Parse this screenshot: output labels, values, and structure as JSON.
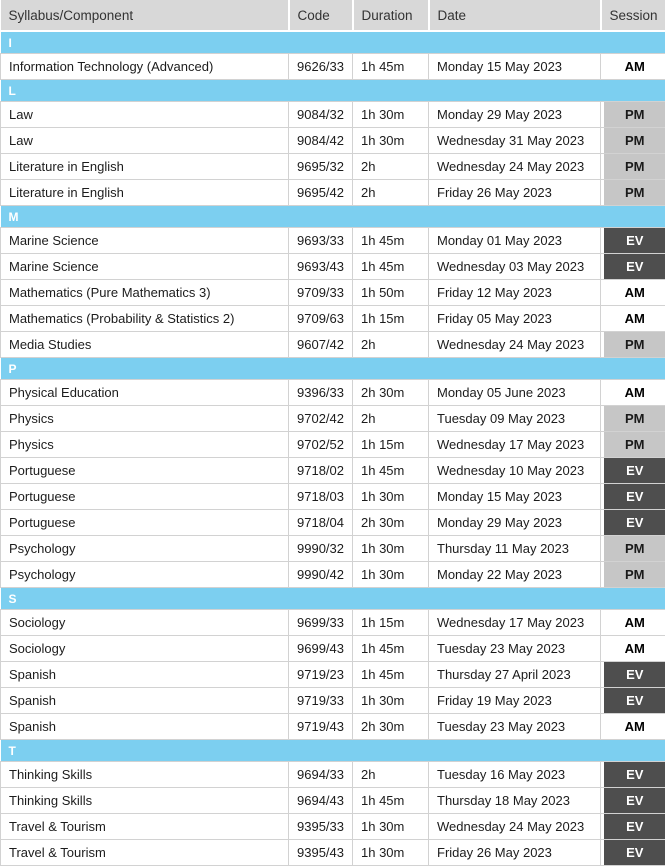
{
  "table": {
    "columns": [
      {
        "label": "Syllabus/Component"
      },
      {
        "label": "Code"
      },
      {
        "label": "Duration"
      },
      {
        "label": "Date"
      },
      {
        "label": "Session"
      }
    ],
    "sections": [
      {
        "letter": "I",
        "rows": [
          {
            "syllabus": "Information Technology (Advanced)",
            "code": "9626/33",
            "duration": "1h 45m",
            "date": "Monday 15 May 2023",
            "session": "AM"
          }
        ]
      },
      {
        "letter": "L",
        "rows": [
          {
            "syllabus": "Law",
            "code": "9084/32",
            "duration": "1h 30m",
            "date": "Monday 29 May 2023",
            "session": "PM"
          },
          {
            "syllabus": "Law",
            "code": "9084/42",
            "duration": "1h 30m",
            "date": "Wednesday 31 May 2023",
            "session": "PM"
          },
          {
            "syllabus": "Literature in English",
            "code": "9695/32",
            "duration": "2h",
            "date": "Wednesday 24 May 2023",
            "session": "PM"
          },
          {
            "syllabus": "Literature in English",
            "code": "9695/42",
            "duration": "2h",
            "date": "Friday 26 May 2023",
            "session": "PM"
          }
        ]
      },
      {
        "letter": "M",
        "rows": [
          {
            "syllabus": "Marine Science",
            "code": "9693/33",
            "duration": "1h 45m",
            "date": "Monday 01 May 2023",
            "session": "EV"
          },
          {
            "syllabus": "Marine Science",
            "code": "9693/43",
            "duration": "1h 45m",
            "date": "Wednesday 03 May 2023",
            "session": "EV"
          },
          {
            "syllabus": "Mathematics (Pure Mathematics 3)",
            "code": "9709/33",
            "duration": "1h 50m",
            "date": "Friday 12 May 2023",
            "session": "AM"
          },
          {
            "syllabus": "Mathematics (Probability & Statistics 2)",
            "code": "9709/63",
            "duration": "1h 15m",
            "date": "Friday 05 May 2023",
            "session": "AM"
          },
          {
            "syllabus": "Media Studies",
            "code": "9607/42",
            "duration": "2h",
            "date": "Wednesday 24 May 2023",
            "session": "PM"
          }
        ]
      },
      {
        "letter": "P",
        "rows": [
          {
            "syllabus": "Physical Education",
            "code": "9396/33",
            "duration": "2h 30m",
            "date": "Monday 05 June 2023",
            "session": "AM"
          },
          {
            "syllabus": "Physics",
            "code": "9702/42",
            "duration": "2h",
            "date": "Tuesday 09 May 2023",
            "session": "PM"
          },
          {
            "syllabus": "Physics",
            "code": "9702/52",
            "duration": "1h 15m",
            "date": "Wednesday 17 May 2023",
            "session": "PM"
          },
          {
            "syllabus": "Portuguese",
            "code": "9718/02",
            "duration": "1h 45m",
            "date": "Wednesday 10 May 2023",
            "session": "EV"
          },
          {
            "syllabus": "Portuguese",
            "code": "9718/03",
            "duration": "1h 30m",
            "date": "Monday 15 May 2023",
            "session": "EV"
          },
          {
            "syllabus": "Portuguese",
            "code": "9718/04",
            "duration": "2h 30m",
            "date": "Monday 29 May 2023",
            "session": "EV"
          },
          {
            "syllabus": "Psychology",
            "code": "9990/32",
            "duration": "1h 30m",
            "date": "Thursday 11 May 2023",
            "session": "PM"
          },
          {
            "syllabus": "Psychology",
            "code": "9990/42",
            "duration": "1h 30m",
            "date": "Monday 22 May 2023",
            "session": "PM"
          }
        ]
      },
      {
        "letter": "S",
        "rows": [
          {
            "syllabus": "Sociology",
            "code": "9699/33",
            "duration": "1h 15m",
            "date": "Wednesday 17 May 2023",
            "session": "AM"
          },
          {
            "syllabus": "Sociology",
            "code": "9699/43",
            "duration": "1h 45m",
            "date": "Tuesday 23 May 2023",
            "session": "AM"
          },
          {
            "syllabus": "Spanish",
            "code": "9719/23",
            "duration": "1h 45m",
            "date": "Thursday 27 April 2023",
            "session": "EV"
          },
          {
            "syllabus": "Spanish",
            "code": "9719/33",
            "duration": "1h 30m",
            "date": "Friday 19 May 2023",
            "session": "EV"
          },
          {
            "syllabus": "Spanish",
            "code": "9719/43",
            "duration": "2h 30m",
            "date": "Tuesday 23 May 2023",
            "session": "AM"
          }
        ]
      },
      {
        "letter": "T",
        "rows": [
          {
            "syllabus": "Thinking Skills",
            "code": "9694/33",
            "duration": "2h",
            "date": "Tuesday 16 May 2023",
            "session": "EV"
          },
          {
            "syllabus": "Thinking Skills",
            "code": "9694/43",
            "duration": "1h 45m",
            "date": "Thursday 18 May 2023",
            "session": "EV"
          },
          {
            "syllabus": "Travel & Tourism",
            "code": "9395/33",
            "duration": "1h 30m",
            "date": "Wednesday 24 May 2023",
            "session": "EV"
          },
          {
            "syllabus": "Travel & Tourism",
            "code": "9395/43",
            "duration": "1h 30m",
            "date": "Friday 26 May 2023",
            "session": "EV"
          }
        ]
      }
    ]
  },
  "colors": {
    "header_bg": "#d8d8d8",
    "header_text": "#333333",
    "section_bg": "#7ccff0",
    "section_text": "#ffffff",
    "row_text": "#1c1c1c",
    "border": "#d2d2d2",
    "session_am_bg": "#ffffff",
    "session_pm_bg": "#c6c6c6",
    "session_ev_bg": "#4e4e4e",
    "session_ev_text": "#ffffff"
  }
}
